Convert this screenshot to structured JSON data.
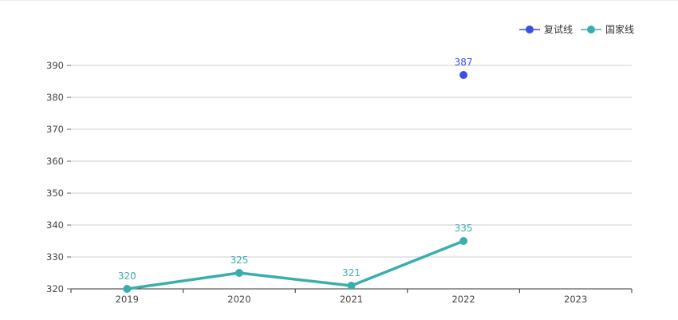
{
  "chart_data": {
    "type": "line",
    "categories": [
      "2019",
      "2020",
      "2021",
      "2022",
      "2023"
    ],
    "series": [
      {
        "name": "复试线",
        "color": "#3b4fe3",
        "values": [
          null,
          null,
          null,
          387,
          null
        ],
        "line": false
      },
      {
        "name": "国家线",
        "color": "#3aaeae",
        "values": [
          320,
          325,
          321,
          335,
          null
        ],
        "line": true
      }
    ],
    "ylim": [
      320,
      390
    ],
    "yticks": [
      320,
      330,
      340,
      350,
      360,
      370,
      380,
      390
    ],
    "grid": true,
    "legend": "top-right"
  }
}
